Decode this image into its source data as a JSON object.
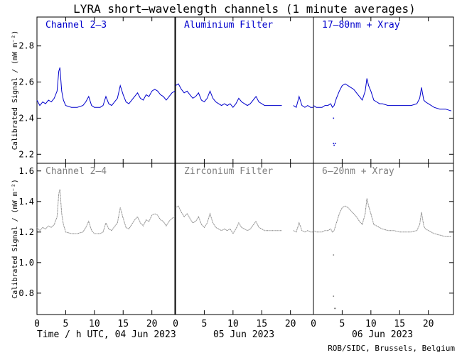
{
  "title": "LYRA short–wavelength channels (1 minute averages)",
  "credit": "ROB/SIDC, Brussels, Belgium",
  "colors": {
    "top": "#0000cc",
    "bottom": "#808080",
    "axes": "#000000"
  },
  "x_axis": {
    "ticks": [
      0,
      5,
      10,
      15,
      20
    ],
    "day_labels": [
      "Time / h UTC, 04 Jun 2023",
      "05 Jun 2023",
      "06 Jun 2023"
    ]
  },
  "chart_data": [
    {
      "type": "line",
      "row": "top",
      "ylabel": "Calibrated Signal / (mW m⁻²)",
      "ylim": [
        2.15,
        2.96
      ],
      "yticks": [
        2.2,
        2.4,
        2.6,
        2.8
      ],
      "panels": [
        {
          "label": "Channel 2–3",
          "day": "04 Jun 2023",
          "points": [
            [
              0,
              2.5
            ],
            [
              0.5,
              2.47
            ],
            [
              1,
              2.49
            ],
            [
              1.5,
              2.48
            ],
            [
              2,
              2.5
            ],
            [
              2.5,
              2.49
            ],
            [
              3,
              2.51
            ],
            [
              3.5,
              2.55
            ],
            [
              3.8,
              2.66
            ],
            [
              4,
              2.68
            ],
            [
              4.3,
              2.55
            ],
            [
              4.6,
              2.5
            ],
            [
              5,
              2.47
            ],
            [
              6,
              2.46
            ],
            [
              7,
              2.46
            ],
            [
              8,
              2.47
            ],
            [
              8.5,
              2.49
            ],
            [
              9,
              2.52
            ],
            [
              9.5,
              2.47
            ],
            [
              10,
              2.46
            ],
            [
              11,
              2.46
            ],
            [
              11.5,
              2.47
            ],
            [
              12,
              2.52
            ],
            [
              12.5,
              2.48
            ],
            [
              13,
              2.47
            ],
            [
              14,
              2.51
            ],
            [
              14.5,
              2.58
            ],
            [
              15,
              2.53
            ],
            [
              15.5,
              2.49
            ],
            [
              16,
              2.48
            ],
            [
              17,
              2.52
            ],
            [
              17.5,
              2.54
            ],
            [
              18,
              2.51
            ],
            [
              18.5,
              2.5
            ],
            [
              19,
              2.53
            ],
            [
              19.5,
              2.52
            ],
            [
              20,
              2.55
            ],
            [
              20.5,
              2.56
            ],
            [
              21,
              2.55
            ],
            [
              21.5,
              2.53
            ],
            [
              22,
              2.52
            ],
            [
              22.5,
              2.5
            ],
            [
              23,
              2.52
            ],
            [
              23.5,
              2.54
            ],
            [
              24,
              2.55
            ]
          ]
        },
        {
          "label": "Aluminium Filter",
          "day": "05 Jun 2023",
          "points": [
            [
              0,
              2.58
            ],
            [
              0.5,
              2.59
            ],
            [
              1,
              2.56
            ],
            [
              1.5,
              2.54
            ],
            [
              2,
              2.55
            ],
            [
              2.5,
              2.53
            ],
            [
              3,
              2.51
            ],
            [
              3.5,
              2.52
            ],
            [
              4,
              2.54
            ],
            [
              4.5,
              2.5
            ],
            [
              5,
              2.49
            ],
            [
              5.5,
              2.51
            ],
            [
              6,
              2.55
            ],
            [
              6.5,
              2.51
            ],
            [
              7,
              2.49
            ],
            [
              7.5,
              2.48
            ],
            [
              8,
              2.47
            ],
            [
              8.5,
              2.48
            ],
            [
              9,
              2.47
            ],
            [
              9.5,
              2.48
            ],
            [
              10,
              2.46
            ],
            [
              10.5,
              2.48
            ],
            [
              11,
              2.51
            ],
            [
              11.5,
              2.49
            ],
            [
              12,
              2.48
            ],
            [
              12.5,
              2.47
            ],
            [
              13,
              2.48
            ],
            [
              14,
              2.52
            ],
            [
              14.5,
              2.49
            ],
            [
              15,
              2.48
            ],
            [
              15.5,
              2.47
            ],
            [
              16,
              2.47
            ],
            [
              17,
              2.47
            ],
            [
              18,
              2.47
            ],
            [
              18.5,
              2.47
            ],
            [
              null,
              null
            ],
            [
              20.5,
              2.47
            ],
            [
              21,
              2.46
            ],
            [
              21.5,
              2.52
            ],
            [
              22,
              2.47
            ],
            [
              22.5,
              2.46
            ],
            [
              23,
              2.47
            ],
            [
              23.5,
              2.46
            ],
            [
              24,
              2.46
            ]
          ]
        },
        {
          "label": "17–80nm + Xray",
          "day": "06 Jun 2023",
          "points": [
            [
              0,
              2.47
            ],
            [
              0.5,
              2.46
            ],
            [
              1,
              2.46
            ],
            [
              1.5,
              2.46
            ],
            [
              2,
              2.47
            ],
            [
              2.5,
              2.47
            ],
            [
              3,
              2.48
            ],
            [
              3.3,
              2.46
            ],
            [
              3.6,
              2.47
            ],
            [
              4,
              2.51
            ],
            [
              4.5,
              2.55
            ],
            [
              5,
              2.58
            ],
            [
              5.5,
              2.59
            ],
            [
              6,
              2.58
            ],
            [
              6.5,
              2.57
            ],
            [
              7,
              2.56
            ],
            [
              7.5,
              2.54
            ],
            [
              8,
              2.52
            ],
            [
              8.5,
              2.5
            ],
            [
              9,
              2.55
            ],
            [
              9.3,
              2.62
            ],
            [
              9.6,
              2.58
            ],
            [
              10,
              2.55
            ],
            [
              10.5,
              2.5
            ],
            [
              11,
              2.49
            ],
            [
              11.5,
              2.48
            ],
            [
              12,
              2.48
            ],
            [
              13,
              2.47
            ],
            [
              14,
              2.47
            ],
            [
              15,
              2.47
            ],
            [
              16,
              2.47
            ],
            [
              17,
              2.47
            ],
            [
              18,
              2.48
            ],
            [
              18.5,
              2.51
            ],
            [
              18.8,
              2.57
            ],
            [
              19.2,
              2.5
            ],
            [
              19.5,
              2.49
            ],
            [
              20,
              2.48
            ],
            [
              21,
              2.46
            ],
            [
              22,
              2.45
            ],
            [
              23,
              2.45
            ],
            [
              24,
              2.44
            ]
          ],
          "dropout": [
            [
              3.5,
              2.4
            ],
            [
              3.5,
              2.26
            ],
            [
              3.8,
              2.26
            ],
            [
              3.6,
              2.25
            ]
          ]
        }
      ]
    },
    {
      "type": "line",
      "row": "bottom",
      "ylabel": "Calibrated Signal / (mW m⁻²)",
      "ylim": [
        0.66,
        1.65
      ],
      "yticks": [
        0.8,
        1.0,
        1.2,
        1.4,
        1.6
      ],
      "panels": [
        {
          "label": "Channel 2–4",
          "day": "04 Jun 2023",
          "points": [
            [
              0,
              1.23
            ],
            [
              0.5,
              1.21
            ],
            [
              1,
              1.23
            ],
            [
              1.5,
              1.22
            ],
            [
              2,
              1.24
            ],
            [
              2.5,
              1.23
            ],
            [
              3,
              1.25
            ],
            [
              3.5,
              1.3
            ],
            [
              3.8,
              1.45
            ],
            [
              4,
              1.48
            ],
            [
              4.3,
              1.32
            ],
            [
              4.6,
              1.25
            ],
            [
              5,
              1.2
            ],
            [
              6,
              1.19
            ],
            [
              7,
              1.19
            ],
            [
              8,
              1.2
            ],
            [
              8.5,
              1.23
            ],
            [
              9,
              1.27
            ],
            [
              9.5,
              1.21
            ],
            [
              10,
              1.19
            ],
            [
              11,
              1.19
            ],
            [
              11.5,
              1.2
            ],
            [
              12,
              1.26
            ],
            [
              12.5,
              1.22
            ],
            [
              13,
              1.21
            ],
            [
              14,
              1.26
            ],
            [
              14.5,
              1.36
            ],
            [
              15,
              1.29
            ],
            [
              15.5,
              1.23
            ],
            [
              16,
              1.22
            ],
            [
              17,
              1.28
            ],
            [
              17.5,
              1.3
            ],
            [
              18,
              1.26
            ],
            [
              18.5,
              1.24
            ],
            [
              19,
              1.28
            ],
            [
              19.5,
              1.27
            ],
            [
              20,
              1.31
            ],
            [
              20.5,
              1.32
            ],
            [
              21,
              1.31
            ],
            [
              21.5,
              1.28
            ],
            [
              22,
              1.27
            ],
            [
              22.5,
              1.24
            ],
            [
              23,
              1.27
            ],
            [
              23.5,
              1.29
            ],
            [
              24,
              1.3
            ]
          ]
        },
        {
          "label": "Zirconium Filter",
          "day": "05 Jun 2023",
          "points": [
            [
              0,
              1.36
            ],
            [
              0.5,
              1.37
            ],
            [
              1,
              1.33
            ],
            [
              1.5,
              1.3
            ],
            [
              2,
              1.32
            ],
            [
              2.5,
              1.29
            ],
            [
              3,
              1.26
            ],
            [
              3.5,
              1.27
            ],
            [
              4,
              1.3
            ],
            [
              4.5,
              1.25
            ],
            [
              5,
              1.23
            ],
            [
              5.5,
              1.26
            ],
            [
              6,
              1.32
            ],
            [
              6.5,
              1.26
            ],
            [
              7,
              1.23
            ],
            [
              7.5,
              1.22
            ],
            [
              8,
              1.21
            ],
            [
              8.5,
              1.22
            ],
            [
              9,
              1.21
            ],
            [
              9.5,
              1.22
            ],
            [
              10,
              1.19
            ],
            [
              10.5,
              1.22
            ],
            [
              11,
              1.26
            ],
            [
              11.5,
              1.23
            ],
            [
              12,
              1.22
            ],
            [
              12.5,
              1.21
            ],
            [
              13,
              1.22
            ],
            [
              14,
              1.27
            ],
            [
              14.5,
              1.23
            ],
            [
              15,
              1.22
            ],
            [
              15.5,
              1.21
            ],
            [
              16,
              1.21
            ],
            [
              17,
              1.21
            ],
            [
              18,
              1.21
            ],
            [
              18.5,
              1.21
            ],
            [
              null,
              null
            ],
            [
              20.5,
              1.21
            ],
            [
              21,
              1.2
            ],
            [
              21.5,
              1.26
            ],
            [
              22,
              1.21
            ],
            [
              22.5,
              1.2
            ],
            [
              23,
              1.21
            ],
            [
              23.5,
              1.2
            ],
            [
              24,
              1.2
            ]
          ]
        },
        {
          "label": "6–20nm + Xray",
          "day": "06 Jun 2023",
          "points": [
            [
              0,
              1.21
            ],
            [
              0.5,
              1.2
            ],
            [
              1,
              1.2
            ],
            [
              1.5,
              1.2
            ],
            [
              2,
              1.21
            ],
            [
              2.5,
              1.21
            ],
            [
              3,
              1.22
            ],
            [
              3.3,
              1.2
            ],
            [
              3.6,
              1.21
            ],
            [
              4,
              1.26
            ],
            [
              4.5,
              1.32
            ],
            [
              5,
              1.36
            ],
            [
              5.5,
              1.37
            ],
            [
              6,
              1.36
            ],
            [
              6.5,
              1.34
            ],
            [
              7,
              1.32
            ],
            [
              7.5,
              1.3
            ],
            [
              8,
              1.27
            ],
            [
              8.5,
              1.25
            ],
            [
              9,
              1.32
            ],
            [
              9.3,
              1.42
            ],
            [
              9.6,
              1.37
            ],
            [
              10,
              1.32
            ],
            [
              10.5,
              1.25
            ],
            [
              11,
              1.24
            ],
            [
              11.5,
              1.23
            ],
            [
              12,
              1.22
            ],
            [
              13,
              1.21
            ],
            [
              14,
              1.21
            ],
            [
              15,
              1.2
            ],
            [
              16,
              1.2
            ],
            [
              17,
              1.2
            ],
            [
              18,
              1.21
            ],
            [
              18.5,
              1.25
            ],
            [
              18.8,
              1.33
            ],
            [
              19.2,
              1.24
            ],
            [
              19.5,
              1.22
            ],
            [
              20,
              1.21
            ],
            [
              21,
              1.19
            ],
            [
              22,
              1.18
            ],
            [
              23,
              1.17
            ],
            [
              24,
              1.17
            ]
          ],
          "dropout": [
            [
              3.5,
              1.05
            ],
            [
              3.5,
              0.78
            ],
            [
              3.7,
              0.7
            ],
            [
              3.8,
              0.7
            ]
          ]
        }
      ]
    }
  ]
}
